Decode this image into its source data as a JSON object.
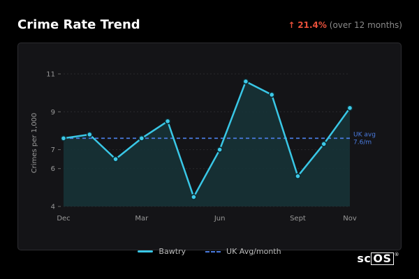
{
  "header": {
    "title": "Crime Rate Trend",
    "change_arrow": "↑",
    "change_value": "21.4%",
    "change_note": "(over 12 months)"
  },
  "brand": {
    "prefix": "sc",
    "boxed": "OS",
    "mark": "®"
  },
  "colors": {
    "series": "#39c7e6",
    "average": "#4a7be0",
    "change": "#e8503a"
  },
  "chart_data": {
    "type": "line",
    "title": "Crime Rate Trend",
    "ylabel": "Crimes per 1,000",
    "ylim": [
      4,
      11
    ],
    "yticks": [
      4,
      6,
      7,
      9,
      11
    ],
    "x": [
      0,
      1,
      2,
      3,
      4,
      5,
      6,
      7,
      8,
      9,
      10,
      11
    ],
    "xticks": [
      {
        "x": 0,
        "label": "Dec"
      },
      {
        "x": 3,
        "label": "Mar"
      },
      {
        "x": 6,
        "label": "Jun"
      },
      {
        "x": 9,
        "label": "Sept"
      },
      {
        "x": 11,
        "label": "Nov"
      }
    ],
    "grid": true,
    "legend_position": "bottom-center",
    "series": [
      {
        "name": "Bawtry",
        "values": [
          7.6,
          7.8,
          6.5,
          7.6,
          8.5,
          4.5,
          7.0,
          10.6,
          9.9,
          5.6,
          7.3,
          9.2
        ]
      }
    ],
    "reference": {
      "name": "UK Avg/month",
      "value": 7.6,
      "label_line1": "UK avg",
      "label_line2": "7.6/m"
    }
  }
}
